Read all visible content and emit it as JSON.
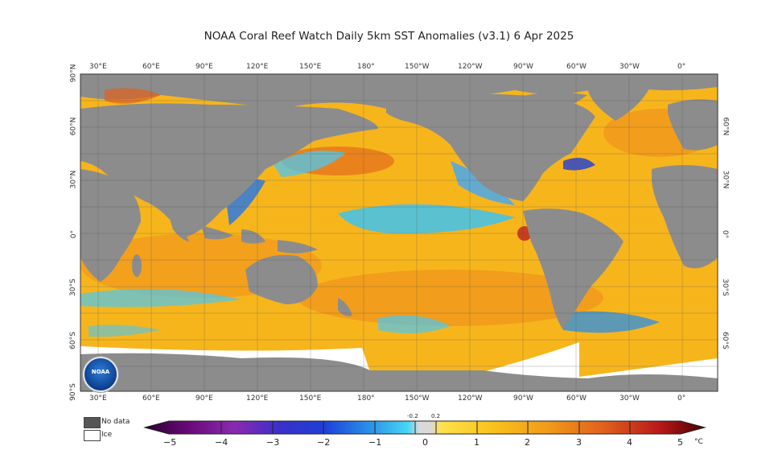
{
  "title": "NOAA Coral Reef Watch Daily 5km SST Anomalies  (v3.1)    6 Apr 2025",
  "axes": {
    "lon_ticks": [
      "30°E",
      "60°E",
      "90°E",
      "120°E",
      "150°E",
      "180°",
      "150°W",
      "120°W",
      "90°W",
      "60°W",
      "30°W",
      "0°"
    ],
    "lat_left": [
      "90°N",
      "60°N",
      "30°N",
      "0°",
      "30°S",
      "60°S",
      "90°S"
    ],
    "lat_right": [
      "60°N",
      "30°N",
      "0°",
      "30°S",
      "60°S"
    ]
  },
  "legend": {
    "no_data": "No data",
    "ice": "Ice"
  },
  "colorbar": {
    "ticks": [
      "−5",
      "−4",
      "−3",
      "−2",
      "−1",
      "0",
      "1",
      "2",
      "3",
      "4",
      "5"
    ],
    "small_ticks": [
      "-0.2",
      "0.2"
    ],
    "unit": "°C"
  },
  "logo": {
    "text": "NOAA"
  },
  "colors": {
    "ocean_warm": "#f7b51c",
    "land": "#8c8c8c",
    "ice": "#ffffff",
    "cool": "#3ec3f0"
  }
}
